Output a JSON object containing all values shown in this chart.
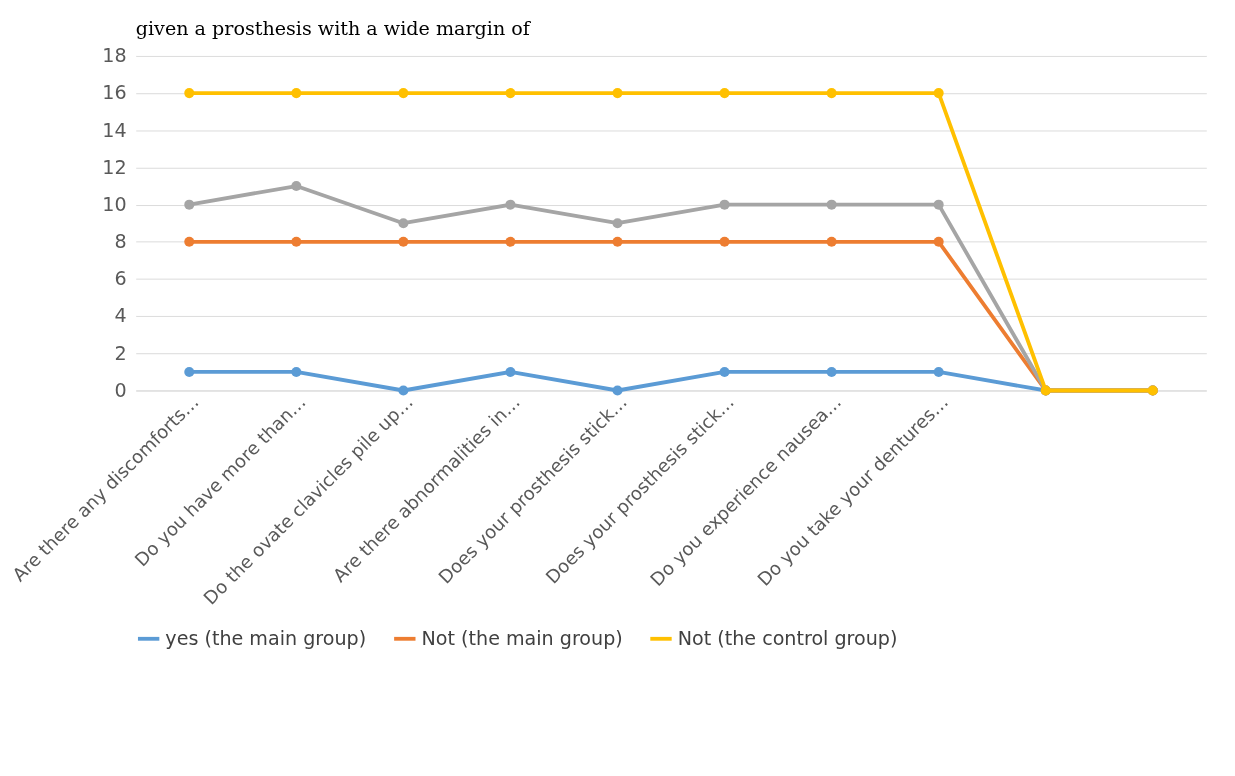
{
  "chart_data": {
    "type": "line",
    "title": "given a prosthesis with a wide margin of",
    "categories": [
      "Are there any discomforts…",
      "Do you have more than…",
      "Do the ovate clavicles pile up…",
      "Are there abnormalities in…",
      "Does your prosthesis stick…",
      "Does your prosthesis stick…",
      "Do you experience nausea…",
      "Do you take your dentures…",
      null,
      null
    ],
    "series": [
      {
        "name": "yes (the main group)",
        "color": "#5b9bd5",
        "values": [
          1,
          1,
          0,
          1,
          0,
          1,
          1,
          1,
          0,
          0
        ]
      },
      {
        "name": "Not (the main group)",
        "color": "#ed7d31",
        "values": [
          8,
          8,
          8,
          8,
          8,
          8,
          8,
          8,
          0,
          0
        ]
      },
      {
        "color": "#a5a5a5",
        "values": [
          10,
          11,
          9,
          10,
          9,
          10,
          10,
          10,
          0,
          0
        ]
      },
      {
        "name": "Not (the control group)",
        "color": "#ffc000",
        "values": [
          16,
          16,
          16,
          16,
          16,
          16,
          16,
          16,
          0,
          0
        ]
      }
    ],
    "ylim": [
      0,
      18
    ],
    "yticks": [
      0,
      2,
      4,
      6,
      8,
      10,
      12,
      14,
      16,
      18
    ],
    "grid": "y",
    "legend": "bottom",
    "marker": "circle",
    "line_style": "solid"
  }
}
